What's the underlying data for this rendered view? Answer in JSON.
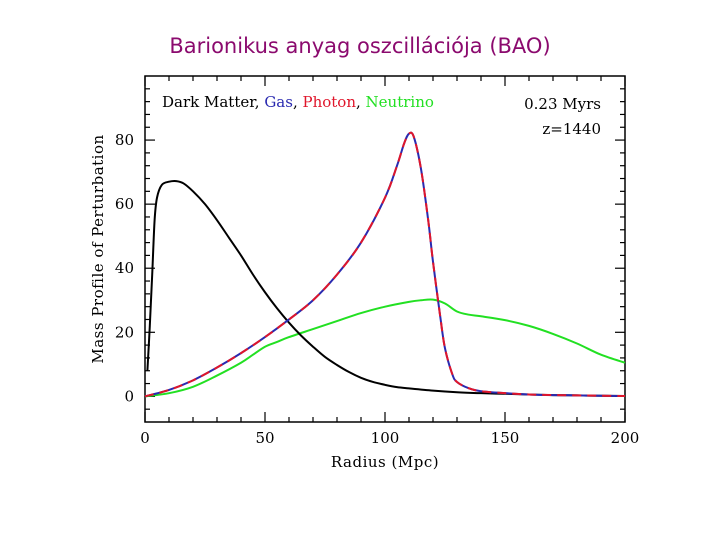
{
  "title": "Barionikus anyag oszcillációja (BAO)",
  "chart_data": {
    "type": "line",
    "xlabel": "Radius (Mpc)",
    "ylabel": "Mass Profile of Perturbation",
    "xlim": [
      0,
      200
    ],
    "ylim": [
      -8,
      100
    ],
    "xticks": [
      0,
      50,
      100,
      150,
      200
    ],
    "yticks": [
      0,
      20,
      40,
      60,
      80
    ],
    "grid": false,
    "legend_position": "top-left",
    "annotations": [
      "0.23 Myrs",
      "z=1440"
    ],
    "legend_separator": ", ",
    "series": [
      {
        "name": "Dark Matter",
        "color": "#000000",
        "dash": "solid",
        "x": [
          1,
          2,
          3,
          4,
          5,
          7,
          10,
          13,
          16,
          20,
          25,
          30,
          35,
          40,
          45,
          50,
          55,
          60,
          65,
          70,
          75,
          80,
          85,
          90,
          95,
          100,
          105,
          110,
          120,
          130,
          140,
          150,
          160,
          170,
          180,
          190,
          200
        ],
        "y": [
          8,
          22,
          38,
          55,
          62,
          66,
          67,
          67.2,
          66.5,
          64,
          60,
          55,
          49.5,
          44,
          38,
          32.5,
          27.5,
          23,
          19,
          15.5,
          12.3,
          9.8,
          7.6,
          5.8,
          4.5,
          3.6,
          2.9,
          2.5,
          1.8,
          1.3,
          1.0,
          0.8,
          0.6,
          0.4,
          0.3,
          0.2,
          0.1
        ]
      },
      {
        "name": "Gas",
        "color": "#2a2ab0",
        "dash": "solid",
        "x": [
          0,
          10,
          20,
          30,
          40,
          50,
          60,
          70,
          80,
          90,
          100,
          105,
          108,
          110,
          112,
          115,
          118,
          120,
          123,
          125,
          128,
          130,
          135,
          140,
          150,
          160,
          170,
          180,
          190,
          200
        ],
        "y": [
          0,
          2,
          5,
          9,
          13.5,
          18.5,
          24,
          30,
          38,
          48,
          62,
          72,
          79,
          82,
          81,
          71,
          55,
          42,
          25,
          15,
          7,
          4.5,
          2.5,
          1.6,
          1.0,
          0.6,
          0.4,
          0.3,
          0.2,
          0.1
        ]
      },
      {
        "name": "Photon",
        "color": "#e0162b",
        "dash": "dashed",
        "x": [
          0,
          10,
          20,
          30,
          40,
          50,
          60,
          70,
          80,
          90,
          100,
          105,
          108,
          110,
          112,
          115,
          118,
          120,
          123,
          125,
          128,
          130,
          135,
          140,
          150,
          160,
          170,
          180,
          190,
          200
        ],
        "y": [
          0,
          2,
          5,
          9,
          13.5,
          18.5,
          24,
          30,
          38,
          48,
          62,
          72,
          79,
          82,
          81,
          71,
          55,
          42,
          25,
          15,
          7,
          4.5,
          2.5,
          1.6,
          1.0,
          0.6,
          0.4,
          0.3,
          0.2,
          0.1
        ]
      },
      {
        "name": "Neutrino",
        "color": "#22e022",
        "dash": "solid",
        "x": [
          0,
          10,
          20,
          30,
          40,
          45,
          50,
          55,
          60,
          70,
          80,
          90,
          100,
          110,
          115,
          120,
          125,
          130,
          135,
          140,
          150,
          160,
          170,
          180,
          190,
          200
        ],
        "y": [
          0,
          1,
          3,
          6.5,
          10.5,
          13,
          15.5,
          17,
          18.5,
          21,
          23.5,
          26,
          28,
          29.5,
          30,
          30.2,
          29,
          26.5,
          25.5,
          25,
          23.8,
          22,
          19.5,
          16.5,
          13,
          10.5
        ]
      }
    ]
  }
}
